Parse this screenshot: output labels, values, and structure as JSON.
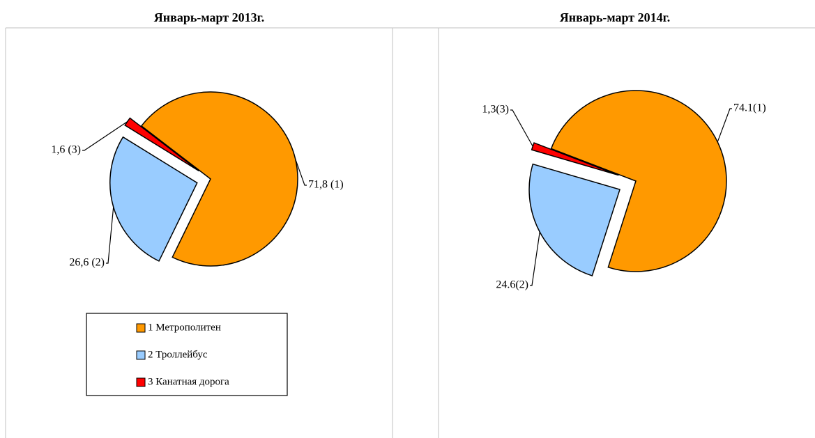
{
  "chart_data": [
    {
      "type": "pie",
      "title": "Январь-март 2013г.",
      "categories": [
        "1 Метрополитен",
        "2 Троллейбус",
        "3 Канатная дорога"
      ],
      "values": [
        71.8,
        26.6,
        1.6
      ],
      "value_labels": [
        "71,8 (1)",
        "26,6 (2)",
        "1,6 (3)"
      ],
      "colors": [
        "#ff9900",
        "#99ccff",
        "#ff0000"
      ],
      "legend": "bottom"
    },
    {
      "type": "pie",
      "title": "Январь-март 2014г.",
      "values": [
        74.1,
        24.6,
        1.3
      ],
      "value_labels": [
        "74.1(1)",
        "24.6(2)",
        "1,3(3)"
      ],
      "colors": [
        "#ff9900",
        "#99ccff",
        "#ff0000"
      ]
    }
  ]
}
